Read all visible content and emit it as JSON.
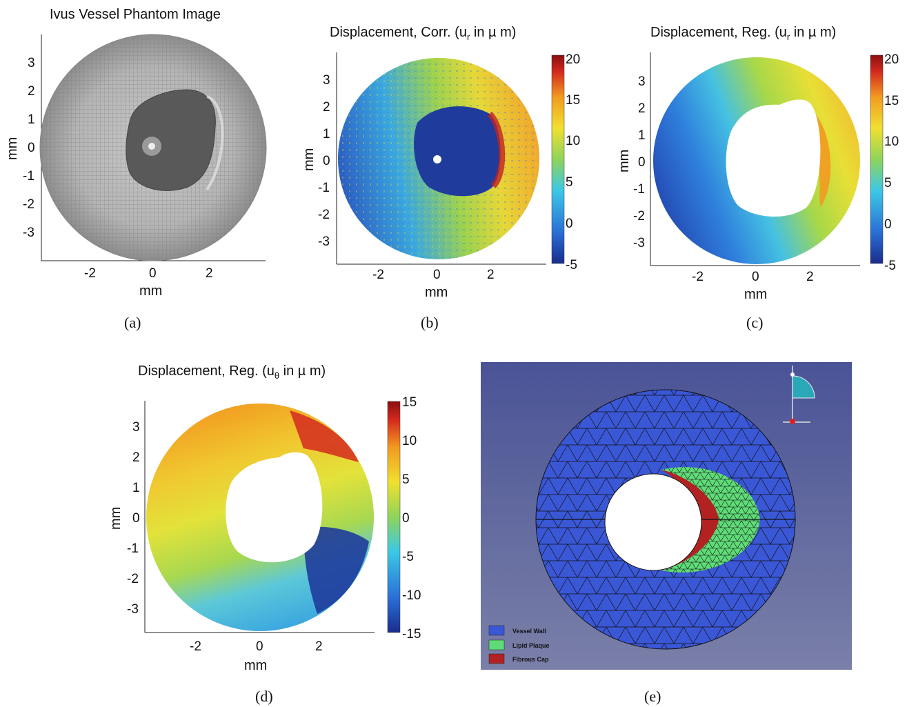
{
  "figure": {
    "panels": [
      {
        "id": "a",
        "title": "Ivus Vessel Phantom Image",
        "caption": "(a)",
        "xlabel": "mm",
        "ylabel": "mm",
        "xticks": [
          "-2",
          "0",
          "2"
        ],
        "yticks": [
          "3",
          "2",
          "1",
          "0",
          "-1",
          "-2",
          "-3"
        ],
        "colorbar": null
      },
      {
        "id": "b",
        "title": "Displacement, Corr. (u",
        "title_sub": "r",
        "title_tail": " in µ m)",
        "caption": "(b)",
        "xlabel": "mm",
        "ylabel": "mm",
        "xticks": [
          "-2",
          "0",
          "2"
        ],
        "yticks": [
          "3",
          "2",
          "1",
          "0",
          "-1",
          "-2",
          "-3"
        ],
        "colorbar": {
          "ticks": [
            "20",
            "15",
            "10",
            "5",
            "0",
            "-5"
          ],
          "min": -5,
          "max": 20
        }
      },
      {
        "id": "c",
        "title": "Displacement, Reg. (u",
        "title_sub": "r",
        "title_tail": " in µ m)",
        "caption": "(c)",
        "xlabel": "mm",
        "ylabel": "mm",
        "xticks": [
          "-2",
          "0",
          "2"
        ],
        "yticks": [
          "3",
          "2",
          "1",
          "0",
          "-1",
          "-2",
          "-3"
        ],
        "colorbar": {
          "ticks": [
            "20",
            "15",
            "10",
            "5",
            "0",
            "-5"
          ],
          "min": -5,
          "max": 20
        }
      },
      {
        "id": "d",
        "title": "Displacement, Reg. (u",
        "title_sub": "θ",
        "title_tail": " in µ m)",
        "caption": "(d)",
        "xlabel": "mm",
        "ylabel": "mm",
        "xticks": [
          "-2",
          "0",
          "2"
        ],
        "yticks": [
          "3",
          "2",
          "1",
          "0",
          "-1",
          "-2",
          "-3"
        ],
        "colorbar": {
          "ticks": [
            "15",
            "10",
            "5",
            "0",
            "-5",
            "-10",
            "-15"
          ],
          "min": -15,
          "max": 15
        }
      },
      {
        "id": "e",
        "caption": "(e)",
        "legend": [
          {
            "label": "Vessel Wall",
            "color": "#3a57d6"
          },
          {
            "label": "Lipid Plaque",
            "color": "#5fdc78"
          },
          {
            "label": "Fibrous Cap",
            "color": "#b22222"
          }
        ]
      }
    ]
  },
  "colors": {
    "jet_dark_blue": "#1a2c8c",
    "jet_blue": "#2a6fd6",
    "jet_cyan": "#3cc8e6",
    "jet_green": "#8fd45a",
    "jet_yellow": "#f0e030",
    "jet_orange": "#f29a20",
    "jet_red": "#d42a1e",
    "jet_dark_red": "#8a0f10",
    "mesh_background": "#4a5396"
  }
}
